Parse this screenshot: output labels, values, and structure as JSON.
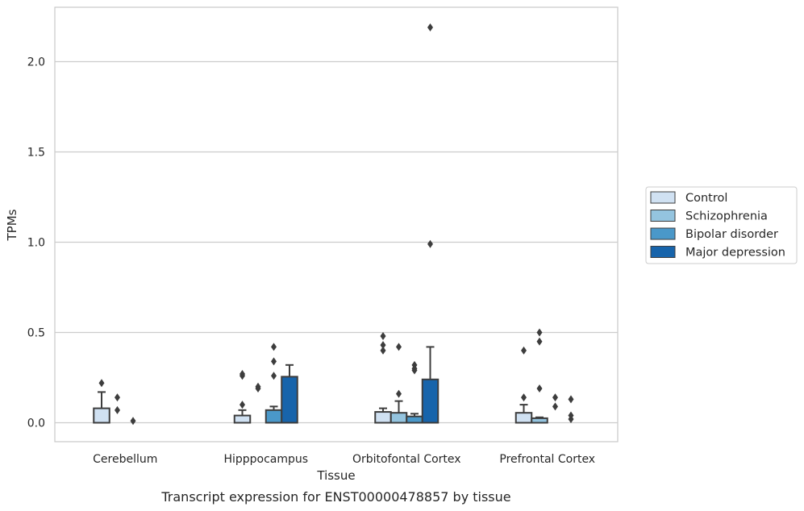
{
  "chart_data": {
    "type": "bar",
    "caption": "Transcript expression for ENST00000478857 by tissue",
    "xlabel": "Tissue",
    "ylabel": "TPMs",
    "ylim": [
      -0.11,
      2.31
    ],
    "yticks": [
      0.0,
      0.5,
      1.0,
      1.5,
      2.0
    ],
    "ytick_labels": [
      "0.0",
      "0.5",
      "1.0",
      "1.5",
      "2.0"
    ],
    "grid": "horizontal",
    "legend_position": "right",
    "categories": [
      "Cerebellum",
      "Hipppocampus",
      "Orbitofontal Cortex",
      "Prefrontal Cortex"
    ],
    "series": [
      {
        "name": "Control",
        "color": "#d0e1f2",
        "values": [
          0.08,
          0.04,
          0.06,
          0.055
        ],
        "error_upper": [
          0.17,
          0.07,
          0.08,
          0.1
        ],
        "outliers": [
          [
            0.22
          ],
          [
            0.1,
            0.26,
            0.27
          ],
          [
            0.4,
            0.43,
            0.48
          ],
          [
            0.14,
            0.4
          ]
        ]
      },
      {
        "name": "Schizophrenia",
        "color": "#94c4df",
        "values": [
          0.0,
          0.0,
          0.055,
          0.025
        ],
        "error_upper": [
          0.0,
          0.0,
          0.12,
          0.03
        ],
        "outliers": [
          [
            0.07,
            0.14
          ],
          [
            0.19,
            0.2
          ],
          [
            0.16,
            0.42
          ],
          [
            0.19,
            0.45,
            0.5
          ]
        ]
      },
      {
        "name": "Bipolar disorder",
        "color": "#4a98c9",
        "values": [
          0.0,
          0.07,
          0.035,
          0.0
        ],
        "error_upper": [
          0.0,
          0.09,
          0.05,
          0.0
        ],
        "outliers": [
          [
            0.01
          ],
          [
            0.26,
            0.34,
            0.42
          ],
          [
            0.29,
            0.3,
            0.32
          ],
          [
            0.09,
            0.14
          ]
        ]
      },
      {
        "name": "Major depression",
        "color": "#1764ab",
        "values": [
          0.0,
          0.255,
          0.24,
          0.0
        ],
        "error_upper": [
          0.0,
          0.32,
          0.42,
          0.0
        ],
        "outliers": [
          [],
          [],
          [
            0.99,
            2.19
          ],
          [
            0.02,
            0.04,
            0.13
          ]
        ]
      }
    ]
  }
}
